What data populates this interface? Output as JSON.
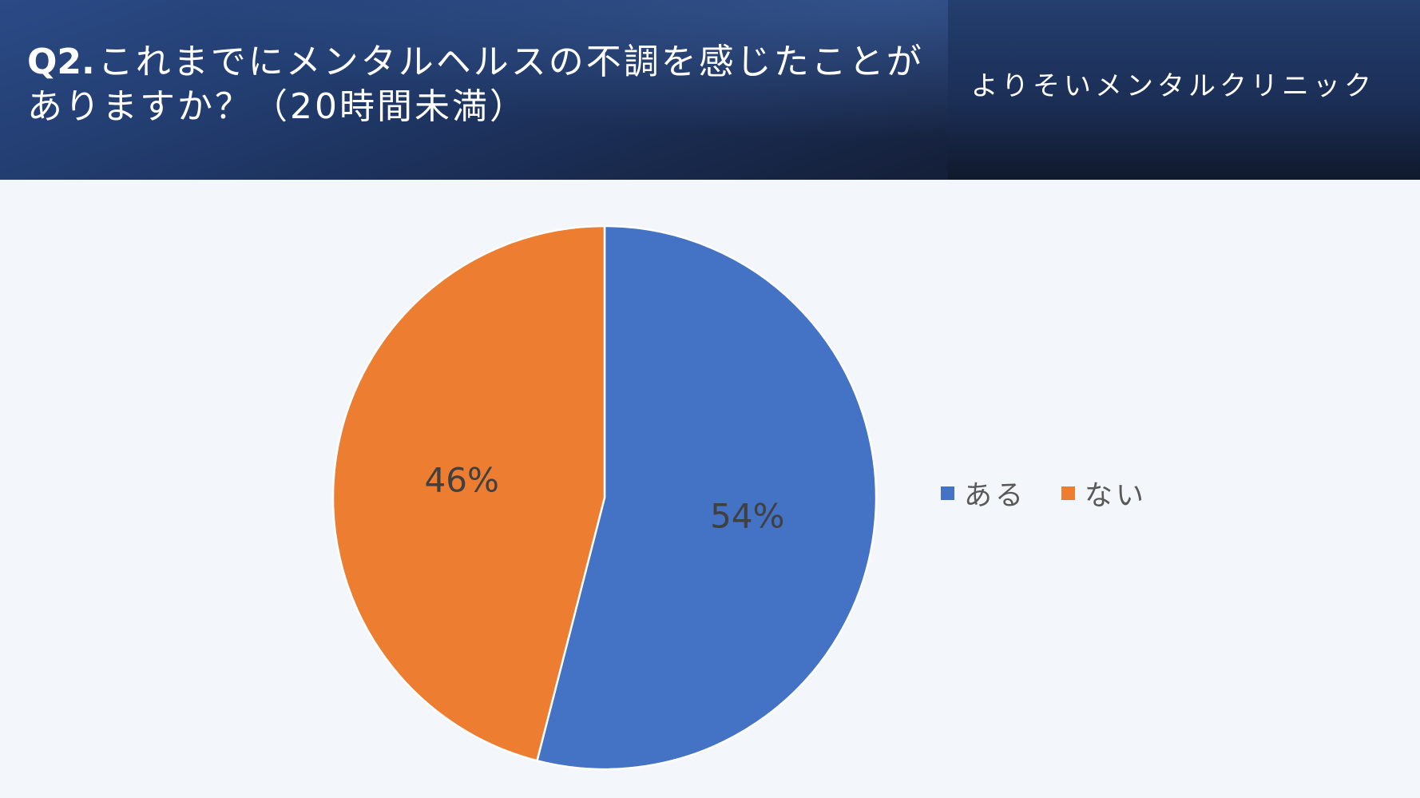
{
  "header": {
    "question_number": "Q2.",
    "question_text": "これまでにメンタルヘルスの不調を感じたことがありますか？（20時間未満）",
    "clinic_name": "よりそいメンタルクリニック"
  },
  "colors": {
    "aru": "#4472c4",
    "nai": "#ed7d31",
    "header_bg": "#1f3563",
    "background": "#f3f6fa"
  },
  "chart_data": {
    "type": "pie",
    "title": "",
    "categories": [
      "ある",
      "ない"
    ],
    "values": [
      54,
      46
    ],
    "data_labels": [
      "54%",
      "46%"
    ],
    "colors": [
      "#4472c4",
      "#ed7d31"
    ],
    "start_angle_deg": 0,
    "direction": "clockwise",
    "legend_placement": "right"
  }
}
